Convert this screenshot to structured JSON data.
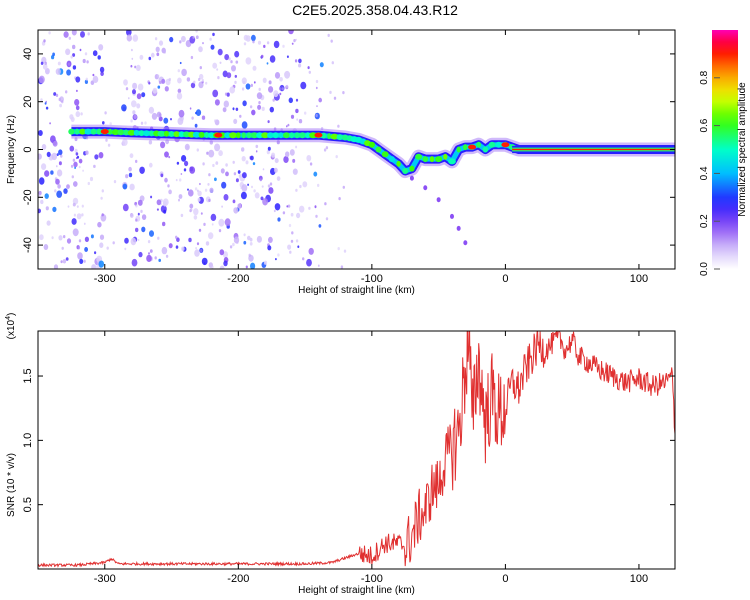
{
  "title": "C2E5.2025.358.04.43.R12",
  "chart_data": [
    {
      "type": "heatmap",
      "xlabel": "Height of straight line (km)",
      "ylabel": "Frequency (Hz)",
      "xlim": [
        -350,
        127
      ],
      "ylim": [
        -50,
        50
      ],
      "xticks": [
        -300,
        -200,
        -100,
        0,
        100
      ],
      "yticks": [
        -40,
        -20,
        0,
        20,
        40
      ],
      "colorbar": {
        "label": "Normalized spectral amplitude",
        "range": [
          0,
          1
        ],
        "ticks": [
          "0.0",
          "0.2",
          "0.4",
          "0.6",
          "0.8"
        ],
        "tick_values": [
          0,
          0.2,
          0.4,
          0.6,
          0.8
        ],
        "colormap": "rainbow-white-low"
      },
      "ridge": {
        "x": [
          -325,
          -300,
          -280,
          -250,
          -220,
          -200,
          -180,
          -160,
          -140,
          -120,
          -110,
          -100,
          -95,
          -90,
          -85,
          -80,
          -75,
          -70,
          -65,
          -60,
          -55,
          -50,
          -45,
          -40,
          -35,
          -30,
          -25,
          -20,
          -15,
          -10,
          -5,
          0,
          5,
          10,
          127
        ],
        "y": [
          7.5,
          7.5,
          7,
          6.5,
          6,
          6,
          6,
          6,
          6,
          5,
          4,
          2,
          0,
          -2,
          -4,
          -6,
          -9,
          -8,
          -3,
          -4,
          -4,
          -4,
          -3,
          -5,
          0,
          1,
          1,
          2,
          0,
          2,
          2,
          2,
          1,
          0,
          0
        ]
      },
      "branch": {
        "x": [
          -70,
          -60,
          -50,
          -40,
          -35,
          -30
        ],
        "y": [
          -12,
          -16,
          -21,
          -28,
          -33,
          -39
        ]
      },
      "colors": {
        "low": "#b79cf5",
        "mid": "#2a21ff",
        "strong": "#00e5ff",
        "peak": "#ff2020"
      }
    },
    {
      "type": "line",
      "xlabel": "Height of straight line (km)",
      "ylabel": "SNR (10 * v/v)",
      "scale_note": "(x10",
      "scale_exp": "4",
      "scale_close": ")",
      "xlim": [
        -350,
        127
      ],
      "ylim": [
        0,
        1.85
      ],
      "xticks": [
        -300,
        -200,
        -100,
        0,
        100
      ],
      "yticks": [
        0.5,
        1.0,
        1.5
      ],
      "ytick_labels": [
        "0.5",
        "1.0",
        "1.5"
      ],
      "series": [
        {
          "color": "#e03030",
          "x": [
            -350,
            -320,
            -300,
            -295,
            -290,
            -250,
            -200,
            -170,
            -150,
            -130,
            -110,
            -100,
            -90,
            -80,
            -75,
            -70,
            -65,
            -60,
            -55,
            -50,
            -45,
            -40,
            -35,
            -30,
            -27,
            -25,
            -22,
            -20,
            -15,
            -10,
            -5,
            0,
            5,
            10,
            15,
            20,
            25,
            30,
            40,
            45,
            50,
            55,
            60,
            70,
            80,
            90,
            100,
            110,
            120,
            125,
            127
          ],
          "y": [
            0.03,
            0.03,
            0.05,
            0.08,
            0.04,
            0.04,
            0.04,
            0.04,
            0.04,
            0.05,
            0.12,
            0.1,
            0.2,
            0.2,
            0.18,
            0.25,
            0.4,
            0.45,
            0.62,
            0.65,
            0.85,
            0.95,
            1.05,
            1.55,
            1.85,
            1.1,
            1.45,
            1.6,
            1.15,
            1.35,
            1.2,
            1.25,
            1.45,
            1.4,
            1.55,
            1.65,
            1.75,
            1.7,
            1.8,
            1.7,
            1.78,
            1.65,
            1.62,
            1.55,
            1.5,
            1.45,
            1.48,
            1.42,
            1.45,
            1.5,
            1.05
          ]
        }
      ]
    }
  ]
}
